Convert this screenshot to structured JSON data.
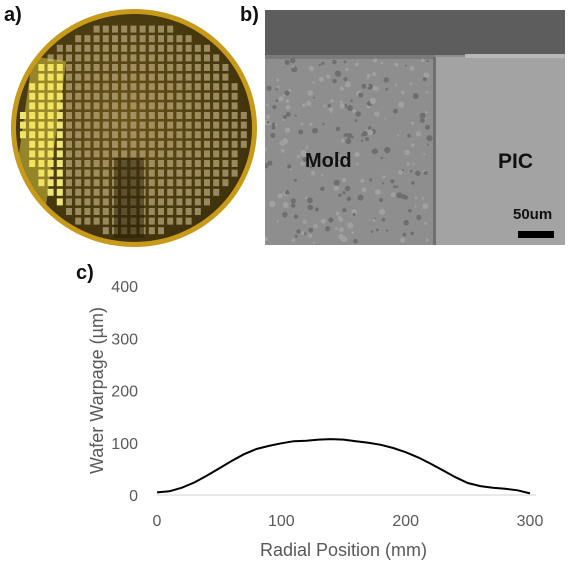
{
  "panels": {
    "a": {
      "label": "a)"
    },
    "b": {
      "label": "b)",
      "mold_label": "Mold",
      "pic_label": "PIC",
      "scale_label": "50um"
    },
    "c": {
      "label": "c)"
    }
  },
  "colors": {
    "wafer_rim": "#c79a1a",
    "wafer_body": "#5a4712",
    "sem_top_layer": "#5d5d5d",
    "sem_mold": "#8e8e8e",
    "sem_pic": "#a3a3a3",
    "curve": "#000000",
    "axis": "#d9d9d9"
  },
  "chart_data": {
    "type": "line",
    "xlabel": "Radial Position (mm)",
    "ylabel": "Wafer Warpage (µm)",
    "xlim": [
      0,
      300
    ],
    "ylim": [
      0,
      400
    ],
    "x_ticks": [
      "0",
      "100",
      "200",
      "300"
    ],
    "y_ticks": [
      "0",
      "100",
      "200",
      "300",
      "400"
    ],
    "grid": false,
    "series": [
      {
        "x": [
          0,
          10,
          20,
          30,
          40,
          50,
          60,
          70,
          80,
          90,
          100,
          110,
          120,
          130,
          140,
          150,
          160,
          170,
          180,
          190,
          200,
          210,
          220,
          230,
          240,
          250,
          260,
          270,
          280,
          290,
          300
        ],
        "values": [
          5,
          7,
          14,
          24,
          37,
          51,
          65,
          78,
          88,
          94,
          99,
          103,
          104,
          106,
          107,
          106,
          103,
          100,
          96,
          90,
          82,
          72,
          60,
          47,
          34,
          23,
          17,
          14,
          12,
          9,
          3
        ]
      }
    ]
  }
}
